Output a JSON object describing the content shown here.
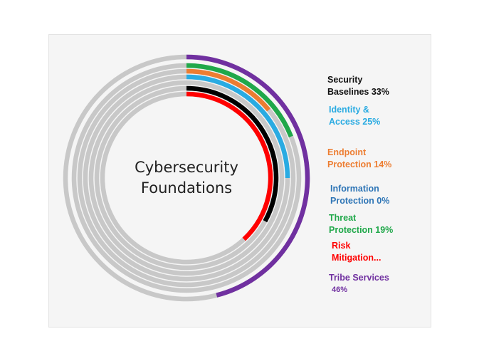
{
  "chart_data": {
    "type": "donut",
    "title": "Cybersecurity\nFoundations",
    "ring_max": 100,
    "series": [
      {
        "name": "Security Baselines 33%",
        "label_lines": [
          "Security",
          "Baselines 33%"
        ],
        "value": 33,
        "color": "#000000",
        "label_color": "#111111"
      },
      {
        "name": "Identity & Access 25%",
        "label_lines": [
          "Identity &",
          "Access 25%"
        ],
        "value": 25,
        "color": "#29abe2",
        "label_color": "#29abe2"
      },
      {
        "name": "Endpoint Protection 14%",
        "label_lines": [
          "Endpoint",
          "Protection 14%"
        ],
        "value": 14,
        "color": "#ed7d31",
        "label_color": "#ed7d31"
      },
      {
        "name": "Information Protection 0%",
        "label_lines": [
          "Information",
          "Protection 0%"
        ],
        "value": 0,
        "color": "#2e75b6",
        "label_color": "#2e75b6"
      },
      {
        "name": "Threat Protection 19%",
        "label_lines": [
          "Threat",
          "Protection 19%"
        ],
        "value": 19,
        "color": "#20a84a",
        "label_color": "#20a84a"
      },
      {
        "name": "Risk Mitigation...",
        "label_lines": [
          "Risk",
          "Mitigation..."
        ],
        "value": 38,
        "color": "#ff0000",
        "label_color": "#ff0000"
      },
      {
        "name": "Tribe Services 46%",
        "label_lines": [
          "Tribe Services",
          "46%"
        ],
        "value": 46,
        "color": "#7030a0",
        "label_color": "#7030a0"
      }
    ],
    "track_color": "#c8c8c8",
    "legend_position": "right"
  }
}
